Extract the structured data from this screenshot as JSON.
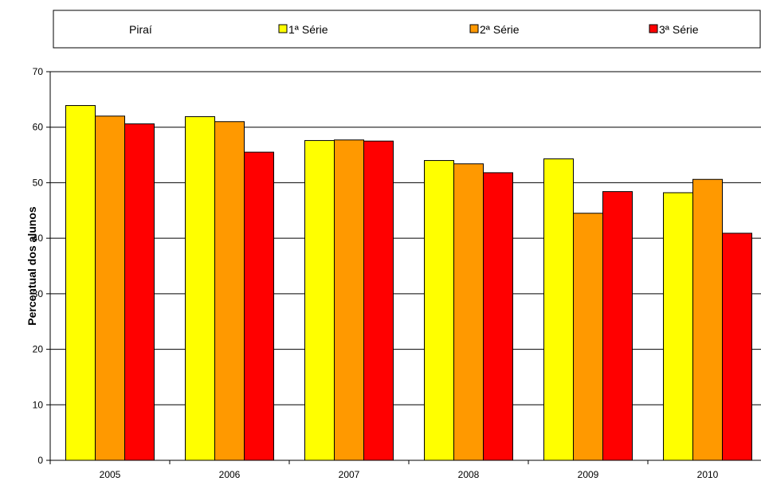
{
  "chart_data": {
    "type": "bar",
    "title": "",
    "xlabel": "",
    "ylabel": "Percentual dos alunos",
    "ylim": [
      0,
      70
    ],
    "yticks": [
      "0",
      "10",
      "20",
      "30",
      "40",
      "50",
      "60",
      "70"
    ],
    "grid": true,
    "legend_position": "top",
    "legend_title": "Piraí",
    "categories": [
      "2005",
      "2006",
      "2007",
      "2008",
      "2009",
      "2010"
    ],
    "series": [
      {
        "name": "1ª Série",
        "color": "#FFFF00",
        "values": [
          63.9,
          61.9,
          57.6,
          54.0,
          54.3,
          48.2
        ]
      },
      {
        "name": "2ª Série",
        "color": "#FF9900",
        "values": [
          62.0,
          61.0,
          57.7,
          53.4,
          44.5,
          50.6
        ]
      },
      {
        "name": "3ª Série",
        "color": "#FF0000",
        "values": [
          60.6,
          55.5,
          57.5,
          51.8,
          48.4,
          40.9
        ]
      }
    ]
  }
}
